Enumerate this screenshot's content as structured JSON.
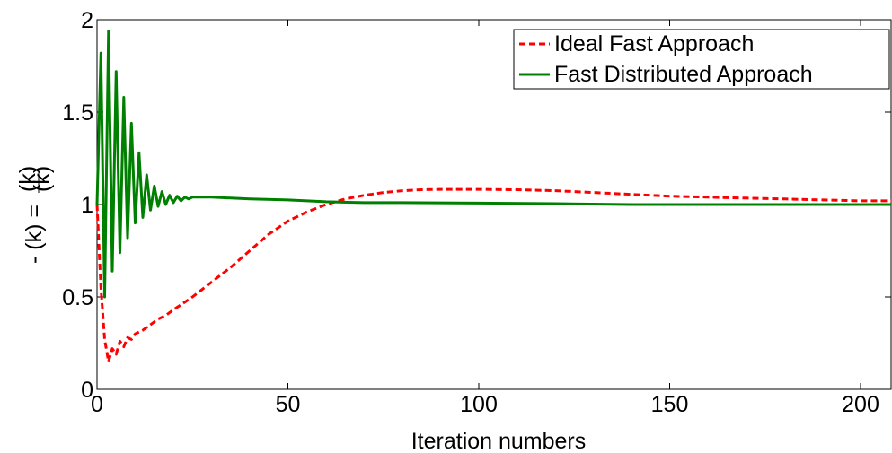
{
  "chart_data": {
    "type": "line",
    "title": "",
    "xlabel": "Iteration numbers",
    "ylabel_left": "- (k) =",
    "ylabel_fraction_top": "(k)",
    "ylabel_fraction_bottom": "(k)",
    "xlim": [
      0,
      208
    ],
    "ylim": [
      0,
      2
    ],
    "x_ticks": [
      0,
      50,
      100,
      150,
      200
    ],
    "x_tick_labels": [
      "0",
      "50",
      "100",
      "150",
      "200"
    ],
    "y_ticks": [
      0,
      0.5,
      1,
      1.5,
      2
    ],
    "y_tick_labels": [
      "0",
      "0.5",
      "1",
      "1.5",
      "2"
    ],
    "grid": false,
    "legend_position": "top-right",
    "series": [
      {
        "name": "Ideal Fast Approach",
        "color": "#ff0000",
        "style": "dashed",
        "x": [
          0,
          1,
          2,
          3,
          4,
          5,
          6,
          7,
          8,
          9,
          10,
          12,
          14,
          16,
          18,
          20,
          25,
          30,
          35,
          40,
          45,
          50,
          55,
          60,
          65,
          70,
          75,
          80,
          85,
          90,
          100,
          110,
          120,
          130,
          140,
          150,
          160,
          170,
          180,
          190,
          200,
          208
        ],
        "y": [
          1.0,
          0.55,
          0.27,
          0.15,
          0.22,
          0.19,
          0.26,
          0.23,
          0.28,
          0.27,
          0.3,
          0.32,
          0.35,
          0.38,
          0.4,
          0.43,
          0.5,
          0.58,
          0.66,
          0.75,
          0.84,
          0.91,
          0.96,
          1.0,
          1.03,
          1.05,
          1.065,
          1.075,
          1.08,
          1.082,
          1.082,
          1.08,
          1.075,
          1.065,
          1.055,
          1.045,
          1.04,
          1.035,
          1.03,
          1.025,
          1.02,
          1.02
        ]
      },
      {
        "name": "Fast Distributed Approach",
        "color": "#008000",
        "style": "solid",
        "x": [
          0,
          1,
          2,
          3,
          4,
          5,
          6,
          7,
          8,
          9,
          10,
          11,
          12,
          13,
          14,
          15,
          16,
          17,
          18,
          19,
          20,
          21,
          22,
          23,
          24,
          25,
          30,
          40,
          50,
          60,
          70,
          80,
          100,
          120,
          140,
          160,
          180,
          200,
          208
        ],
        "y": [
          1.0,
          1.82,
          0.5,
          1.94,
          0.64,
          1.72,
          0.74,
          1.58,
          0.82,
          1.44,
          0.9,
          1.28,
          0.93,
          1.16,
          0.97,
          1.1,
          0.99,
          1.07,
          1.0,
          1.05,
          1.01,
          1.045,
          1.02,
          1.04,
          1.03,
          1.04,
          1.04,
          1.03,
          1.025,
          1.015,
          1.01,
          1.01,
          1.008,
          1.005,
          1.0,
          1.0,
          1.0,
          1.0,
          1.0
        ]
      }
    ]
  }
}
